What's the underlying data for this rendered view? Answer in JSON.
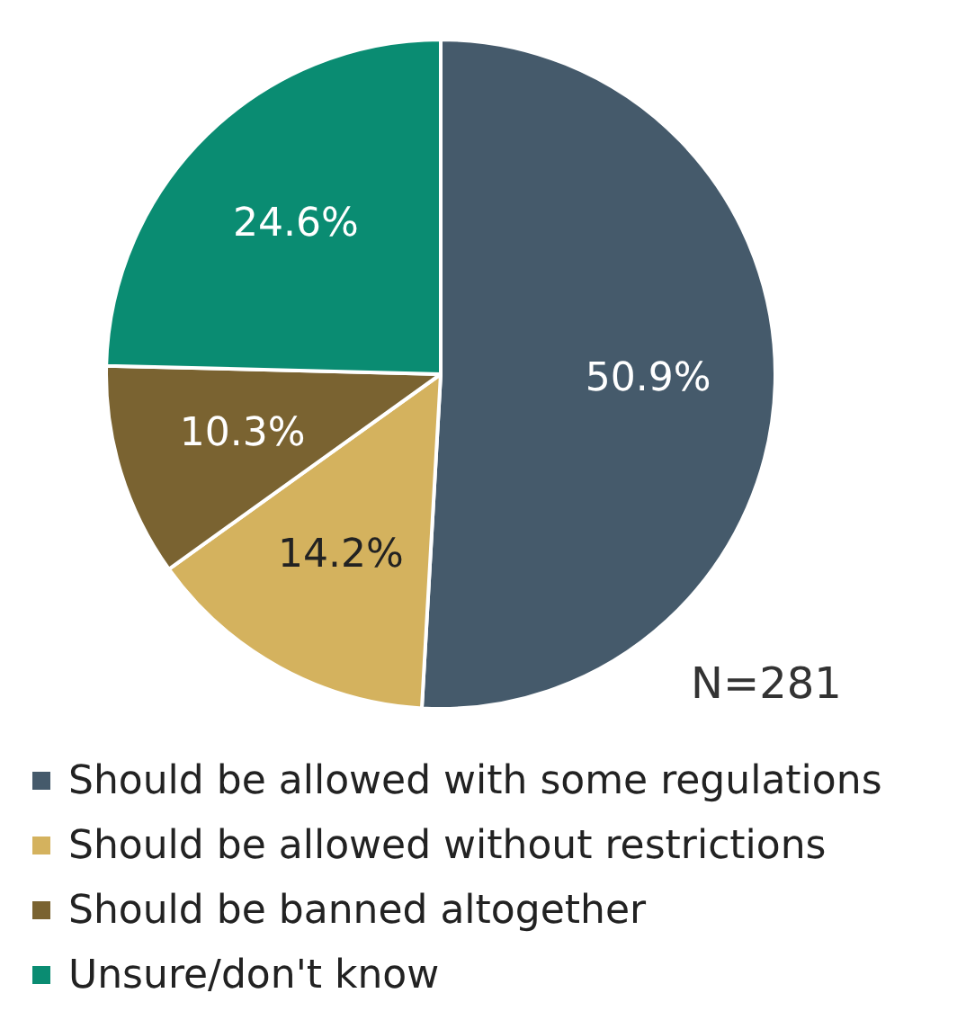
{
  "chart_data": {
    "type": "pie",
    "categories": [
      "Should be allowed with some regulations",
      "Should be allowed without restrictions",
      "Should be banned altogether",
      "Unsure/don't know"
    ],
    "values": [
      50.9,
      14.2,
      10.3,
      24.6
    ],
    "colors": [
      "#455a6b",
      "#d4b25e",
      "#7a6331",
      "#0a8c72"
    ],
    "value_labels": [
      "50.9%",
      "14.2%",
      "10.3%",
      "24.6%"
    ],
    "legend": "bottom",
    "annotations": [
      "N=281"
    ]
  }
}
